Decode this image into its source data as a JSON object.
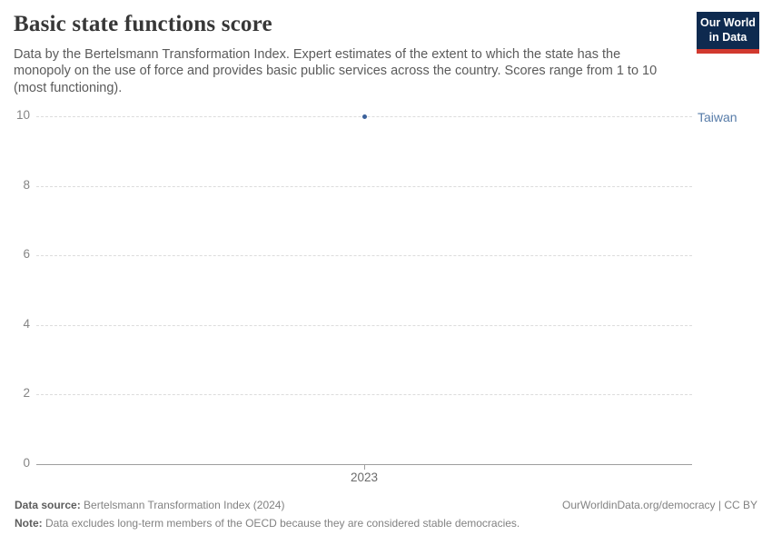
{
  "header": {
    "title": "Basic state functions score",
    "subtitle": "Data by the Bertelsmann Transformation Index. Expert estimates of the extent to which the state has the monopoly on the use of force and provides basic public services across the country. Scores range from 1 to 10 (most functioning).",
    "logo": {
      "line1": "Our World",
      "line2": "in Data"
    }
  },
  "chart_data": {
    "type": "scatter",
    "title": "Basic state functions score",
    "x": [
      2023
    ],
    "xticks": [
      "2023"
    ],
    "series": [
      {
        "name": "Taiwan",
        "values": [
          10
        ]
      }
    ],
    "yticks": [
      0,
      2,
      4,
      6,
      8,
      10
    ],
    "ylim": [
      0,
      10
    ],
    "xlabel": "",
    "ylabel": "",
    "grid": true,
    "legend_position": "right-of-plot-entity-label"
  },
  "footer": {
    "data_source_label": "Data source:",
    "data_source_value": " Bertelsmann Transformation Index (2024)",
    "note_label": "Note:",
    "note_value": " Data excludes long-term members of the OECD because they are considered stable democracies.",
    "attribution": "OurWorldinData.org/democracy | CC BY"
  },
  "colors": {
    "point": "#3b619b",
    "series_label": "#577ca9",
    "grid": "#dcdcdc",
    "axis": "#9e9e9e",
    "logo_bg": "#0e2a4f",
    "logo_stripe": "#d1392f",
    "title_text": "#373737",
    "subtitle_text": "#5b5b5b"
  }
}
